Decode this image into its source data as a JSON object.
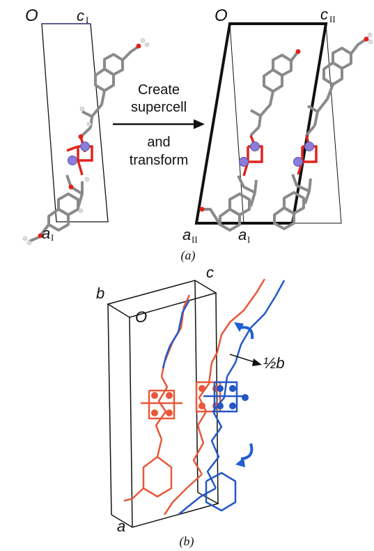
{
  "panel_a": {
    "left_cell": {
      "origin": "O",
      "c_label": "c",
      "c_sub": "I",
      "a_label": "a",
      "a_sub": "I"
    },
    "arrow_text": {
      "line1": "Create",
      "line2": "supercell",
      "line3": "and",
      "line4": "transform"
    },
    "right_cell": {
      "origin": "O",
      "c_label": "c",
      "c_sub": "II",
      "a2_label": "a",
      "a2_sub": "II",
      "a1_label": "a",
      "a1_sub": "I"
    },
    "caption": "(a)"
  },
  "panel_b": {
    "b_label": "b",
    "c_label": "c",
    "origin": "O",
    "a_label": "a",
    "shift_label": "½b",
    "caption": "(b)"
  },
  "colors": {
    "frame": "#111111",
    "stick_grey": "#8a8a8a",
    "hydrogen": "#dcdcdc",
    "oxygen": "#e0231c",
    "metal": "#8a7ddb",
    "model_red": "#e8583a",
    "model_blue": "#2456c8",
    "curl_arrow": "#1f5fd0"
  }
}
